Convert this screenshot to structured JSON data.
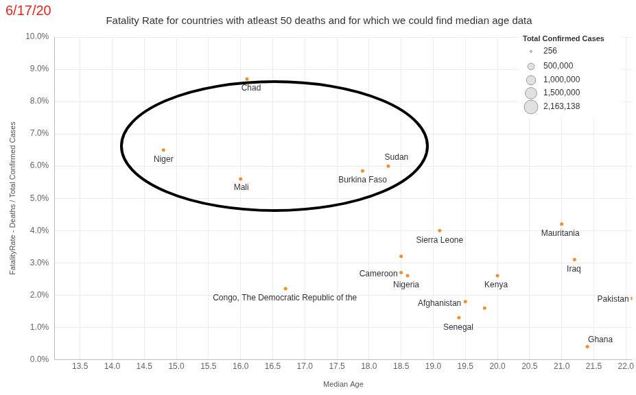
{
  "chart_data": {
    "type": "scatter",
    "title": "Fatality Rate for countries with atleast 50 deaths and for which we could find median age data",
    "subtitle": "6/17/20",
    "x_label": "Median Age",
    "y_label": "FatalityRate - Deaths / Total Confirmed Cases",
    "x": [
      16.1,
      14.8,
      16.0,
      17.9,
      18.3,
      19.1,
      18.5,
      18.5,
      18.6,
      16.7,
      20.0,
      19.5,
      19.8,
      19.4,
      21.0,
      21.2,
      22.1,
      21.4
    ],
    "values": [
      8.7,
      6.5,
      5.6,
      5.85,
      6.0,
      4.0,
      3.2,
      2.7,
      2.6,
      2.2,
      2.6,
      1.8,
      1.6,
      1.3,
      4.2,
      3.1,
      1.9,
      0.4
    ],
    "point_labels": [
      "Chad",
      "Niger",
      "Mali",
      "Burkina Faso",
      "Sudan",
      "Sierra Leone",
      null,
      "Cameroon",
      "Nigeria",
      "Congo, The Democratic Republic of the",
      "Kenya",
      "Afghanistan",
      null,
      "Senegal",
      "Mauritania",
      "Iraq",
      "Pakistan",
      "Ghana"
    ],
    "color": "#f28e2b",
    "xlim": [
      13.1,
      22.1
    ],
    "ylim": [
      0,
      10
    ],
    "xticks": [
      13.5,
      {
        "value": 14,
        "label": "14.0"
      },
      14.5,
      {
        "value": 15,
        "label": "15.0"
      },
      15.5,
      {
        "value": 16,
        "label": "16.0"
      },
      16.5,
      {
        "value": 17,
        "label": "17.0"
      },
      17.5,
      {
        "value": 18,
        "label": "18.0"
      },
      18.5,
      {
        "value": 19,
        "label": "19.0"
      },
      19.5,
      {
        "value": 20,
        "label": "20.0"
      },
      20.5,
      {
        "value": 21,
        "label": "21.0"
      },
      21.5,
      {
        "value": 22,
        "label": "22.0"
      }
    ],
    "yticks": [
      {
        "value": 0,
        "label": "0.0%"
      },
      {
        "value": 1,
        "label": "1.0%"
      },
      {
        "value": 2,
        "label": "2.0%"
      },
      {
        "value": 3,
        "label": "3.0%"
      },
      {
        "value": 4,
        "label": "4.0%"
      },
      {
        "value": 5,
        "label": "5.0%"
      },
      {
        "value": 6,
        "label": "6.0%"
      },
      {
        "value": 7,
        "label": "7.0%"
      },
      {
        "value": 8,
        "label": "8.0%"
      },
      {
        "value": 9,
        "label": "9.0%"
      },
      {
        "value": 10,
        "label": "10.0%"
      }
    ],
    "grid": true,
    "size_legend": {
      "title": "Total Confirmed Cases",
      "values": [
        256,
        500000,
        1000000,
        1500000,
        2163138
      ],
      "labels": [
        "256",
        "500,000",
        "1,000,000",
        "1,500,000",
        "2,163,138"
      ]
    }
  }
}
